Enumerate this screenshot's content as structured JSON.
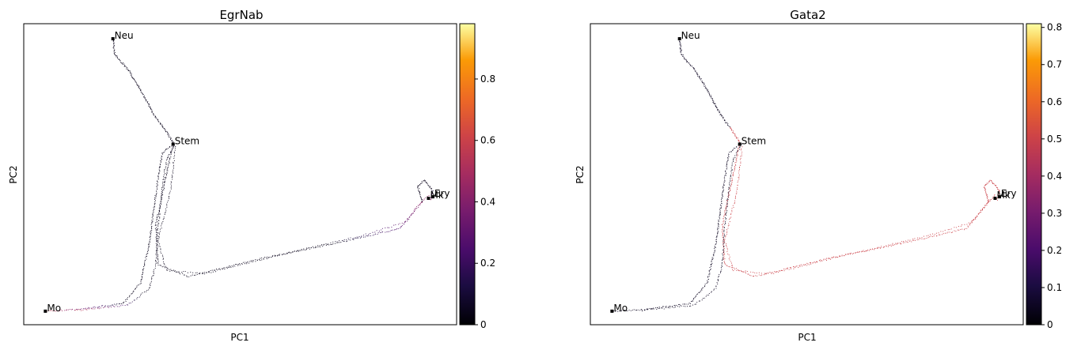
{
  "chart_data": [
    {
      "type": "scatter",
      "title": "EgrNab",
      "xlabel": "PC1",
      "ylabel": "PC2",
      "colorbar": {
        "colormap": "inferno",
        "range": [
          0,
          0.98
        ],
        "ticks": [
          0,
          0.2,
          0.4,
          0.6,
          0.8
        ],
        "tick_labels": [
          "0",
          "0.2",
          "0.4",
          "0.6",
          "0.8"
        ]
      },
      "branches": [
        {
          "name": "neu",
          "level": 0.05
        },
        {
          "name": "mo",
          "level": 0.05,
          "tail_level": 0.6
        },
        {
          "name": "ery",
          "level": 0.05,
          "tail_level": 0.45
        }
      ],
      "labels": [
        "Neu",
        "Stem",
        "Mo",
        "Mk",
        "Ery"
      ],
      "grid": false
    },
    {
      "type": "scatter",
      "title": "Gata2",
      "xlabel": "PC1",
      "ylabel": "PC2",
      "colorbar": {
        "colormap": "inferno",
        "range": [
          0,
          0.81
        ],
        "ticks": [
          0,
          0.1,
          0.2,
          0.3,
          0.4,
          0.5,
          0.6,
          0.7,
          0.8
        ],
        "tick_labels": [
          "0",
          "0.1",
          "0.2",
          "0.3",
          "0.4",
          "0.5",
          "0.6",
          "0.7",
          "0.8"
        ]
      },
      "branches": [
        {
          "name": "neu",
          "level": 0.05,
          "stem_level": 0.5
        },
        {
          "name": "mo",
          "level": 0.05
        },
        {
          "name": "ery",
          "level": 0.5
        }
      ],
      "labels": [
        "Neu",
        "Stem",
        "Mo",
        "Mk",
        "Ery"
      ],
      "grid": false
    }
  ]
}
